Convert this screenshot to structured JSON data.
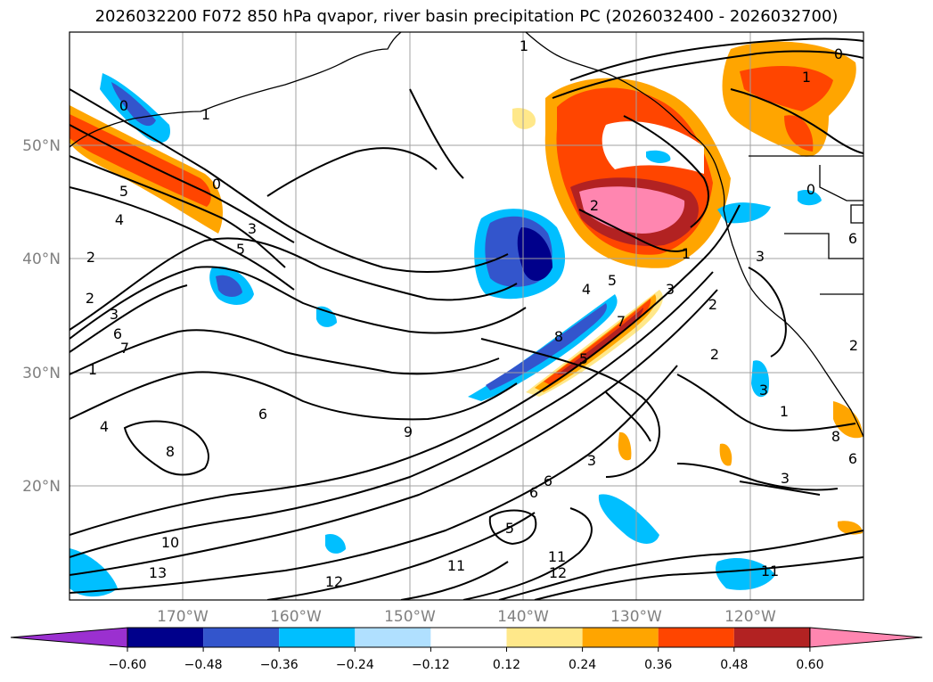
{
  "title": "2026032200 F072 850 hPa qvapor, river basin precipitation PC (2026032400 - 2026032700)",
  "map": {
    "lat_labels": [
      "50°N",
      "40°N",
      "30°N",
      "20°N"
    ],
    "lon_labels": [
      "170°W",
      "160°W",
      "150°W",
      "140°W",
      "130°W",
      "120°W"
    ],
    "contour_labels": [
      "1",
      "0",
      "1",
      "0",
      "5",
      "4",
      "2",
      "0",
      "2",
      "1",
      "3",
      "5",
      "2",
      "6",
      "3",
      "7",
      "1",
      "2",
      "6",
      "3",
      "5",
      "4",
      "8",
      "5",
      "4",
      "7",
      "3",
      "1",
      "0",
      "2",
      "2",
      "3",
      "6",
      "1",
      "6",
      "8",
      "8",
      "9",
      "3",
      "6",
      "10",
      "13",
      "12",
      "11",
      "11",
      "12",
      "11",
      "3",
      "5",
      "6"
    ]
  },
  "colorbar": {
    "ticks": [
      "−0.60",
      "−0.48",
      "−0.36",
      "−0.24",
      "−0.12",
      "0.12",
      "0.24",
      "0.36",
      "0.48",
      "0.60"
    ],
    "colors": [
      "#9b30d0",
      "#00008b",
      "#3355cc",
      "#00bfff",
      "#b0e0ff",
      "#ffffff",
      "#ffe88a",
      "#ffa500",
      "#ff4500",
      "#b22222",
      "#ff86b0"
    ]
  }
}
